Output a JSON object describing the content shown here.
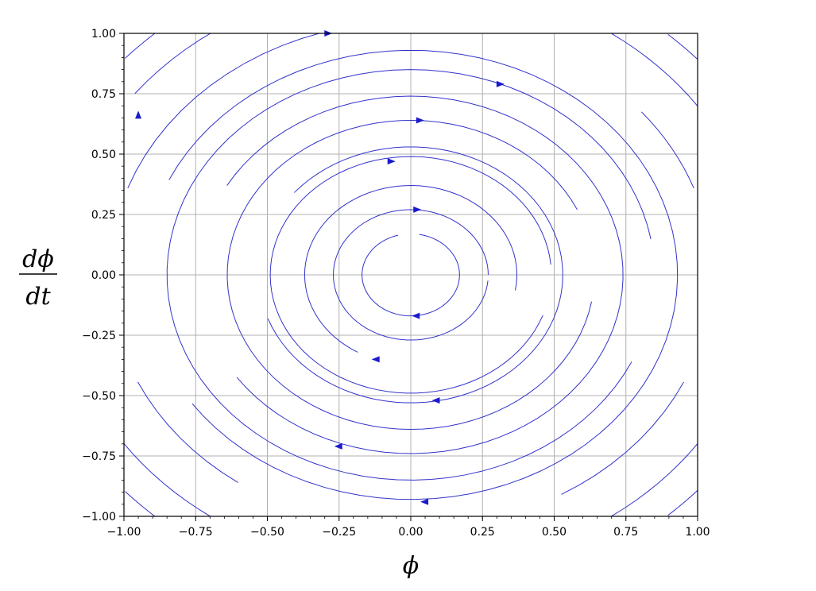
{
  "chart_data": {
    "type": "streamplot",
    "title": "",
    "xlabel": "ϕ",
    "ylabel": {
      "numerator": "dϕ",
      "denominator": "dt"
    },
    "xlim": [
      -1.0,
      1.0
    ],
    "ylim": [
      -1.0,
      1.0
    ],
    "grid": true,
    "x_ticks": [
      -1.0,
      -0.75,
      -0.5,
      -0.25,
      0.0,
      0.25,
      0.5,
      0.75,
      1.0
    ],
    "y_ticks": [
      -1.0,
      -0.75,
      -0.5,
      -0.25,
      0.0,
      0.25,
      0.5,
      0.75,
      1.0
    ],
    "x_tick_labels": [
      "−1.00",
      "−0.75",
      "−0.50",
      "−0.25",
      "0.00",
      "0.25",
      "0.50",
      "0.75",
      "1.00"
    ],
    "y_tick_labels": [
      "−1.00",
      "−0.75",
      "−0.50",
      "−0.25",
      "0.00",
      "0.25",
      "0.50",
      "0.75",
      "1.00"
    ],
    "field": "clockwise rotation about origin (dx/dt = y, dy/dt = -x)",
    "colors": {
      "stream": "#3333cc",
      "grid": "#b0b0b0",
      "axes": "#000000"
    },
    "streamlines": [
      {
        "radius": 0.17,
        "arcs": [
          [
            105,
            440
          ]
        ],
        "arrows": [
          [
            0.02,
            0.27,
            "right"
          ],
          [
            0.02,
            -0.17,
            "left"
          ]
        ]
      },
      {
        "radius": 0.27,
        "arcs": [
          [
            0,
            355
          ]
        ],
        "arrows": []
      },
      {
        "radius": 0.37,
        "arcs": [
          [
            350,
            600
          ]
        ],
        "arrows": [
          [
            -0.12,
            -0.35,
            "left"
          ]
        ]
      },
      {
        "radius": 0.49,
        "arcs": [
          [
            5,
            340
          ]
        ],
        "arrows": [
          [
            -0.07,
            0.47,
            "right"
          ]
        ]
      },
      {
        "radius": 0.53,
        "arcs": [
          [
            200,
            500
          ]
        ],
        "arrows": [
          [
            0.09,
            -0.52,
            "left"
          ]
        ]
      },
      {
        "radius": 0.64,
        "arcs": [
          [
            25,
            350
          ]
        ],
        "arrows": [
          [
            0.03,
            0.64,
            "right"
          ]
        ]
      },
      {
        "radius": 0.74,
        "arcs": [
          [
            215,
            510
          ]
        ],
        "arrows": [
          [
            -0.25,
            -0.71,
            "left"
          ]
        ]
      },
      {
        "radius": 0.85,
        "arcs": [
          [
            10,
            335
          ]
        ],
        "arrows": [
          [
            0.31,
            0.79,
            "right"
          ]
        ]
      },
      {
        "radius": 0.93,
        "arcs": [
          [
            215,
            515
          ]
        ],
        "arrows": [
          [
            0.05,
            -0.94,
            "left"
          ]
        ]
      },
      {
        "radius": 1.05,
        "arcs": [
          [
            95,
            160
          ],
          [
            205,
            235
          ],
          [
            300,
            335
          ],
          [
            380,
            400
          ]
        ],
        "arrows": [
          [
            -0.29,
            1.0,
            "right"
          ]
        ]
      },
      {
        "radius": 1.22,
        "arcs": [
          [
            35,
            55
          ],
          [
            118,
            142
          ],
          [
            215,
            235
          ],
          [
            305,
            325
          ]
        ],
        "arrows": [
          [
            -0.95,
            0.66,
            "up"
          ]
        ]
      },
      {
        "radius": 1.34,
        "arcs": [
          [
            40,
            48
          ],
          [
            130,
            138
          ],
          [
            222,
            230
          ],
          [
            312,
            320
          ]
        ],
        "arrows": []
      }
    ]
  }
}
